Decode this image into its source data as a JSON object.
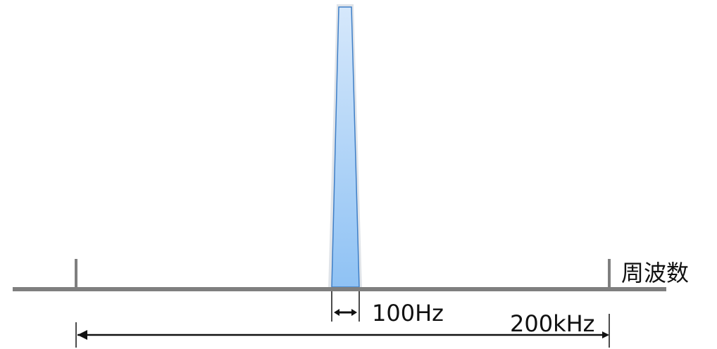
{
  "diagram": {
    "labels": {
      "axis_unit": "周波数",
      "signal_bandwidth": "100Hz",
      "span_width": "200kHz"
    },
    "colors": {
      "axis": "#7f7f7f",
      "signal_fill_top": "#d6e8fb",
      "signal_fill_bottom": "#8fc2f4",
      "signal_stroke": "#3f7fc7",
      "signal_glow": "#cfd6de",
      "arrow": "#111111"
    }
  }
}
